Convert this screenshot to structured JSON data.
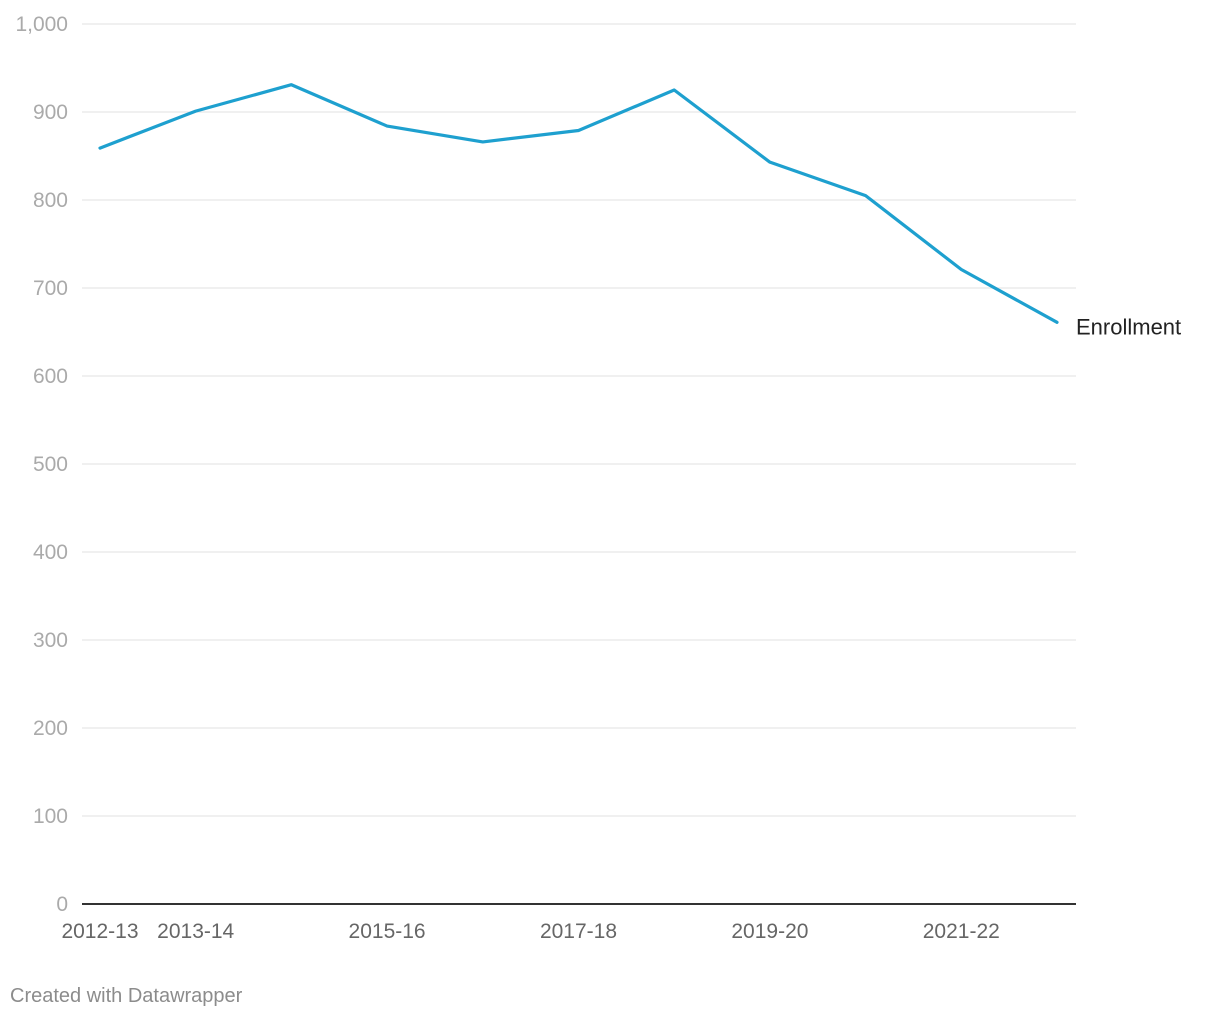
{
  "chart_data": {
    "type": "line",
    "title": "",
    "xlabel": "",
    "ylabel": "",
    "x": [
      "2012-13",
      "2013-14",
      "2014-15",
      "2015-16",
      "2016-17",
      "2017-18",
      "2018-19",
      "2019-20",
      "2020-21",
      "2021-22",
      "2022-23"
    ],
    "x_tick_labels": [
      "2012-13",
      "2013-14",
      "2015-16",
      "2017-18",
      "2019-20",
      "2021-22"
    ],
    "y_ticks": [
      0,
      100,
      200,
      300,
      400,
      500,
      600,
      700,
      800,
      900,
      1000
    ],
    "y_tick_labels": [
      "0",
      "100",
      "200",
      "300",
      "400",
      "500",
      "600",
      "700",
      "800",
      "900",
      "1,000"
    ],
    "ylim": [
      0,
      1000
    ],
    "grid": true,
    "series": [
      {
        "name": "Enrollment",
        "values": [
          859,
          901,
          931,
          884,
          866,
          879,
          925,
          843,
          805,
          721,
          661
        ],
        "color": "#1ea0cf"
      }
    ],
    "legend": "direct label at line end (right)"
  },
  "colors": {
    "line": "#1ea0cf",
    "grid": "#e6e6e6",
    "baseline": "#333333",
    "y_tick_text": "#aaaaaa",
    "x_tick_text": "#666666",
    "series_label": "#222222",
    "footer_text": "#8c8c8c"
  },
  "footer": {
    "credit": "Created with Datawrapper"
  }
}
